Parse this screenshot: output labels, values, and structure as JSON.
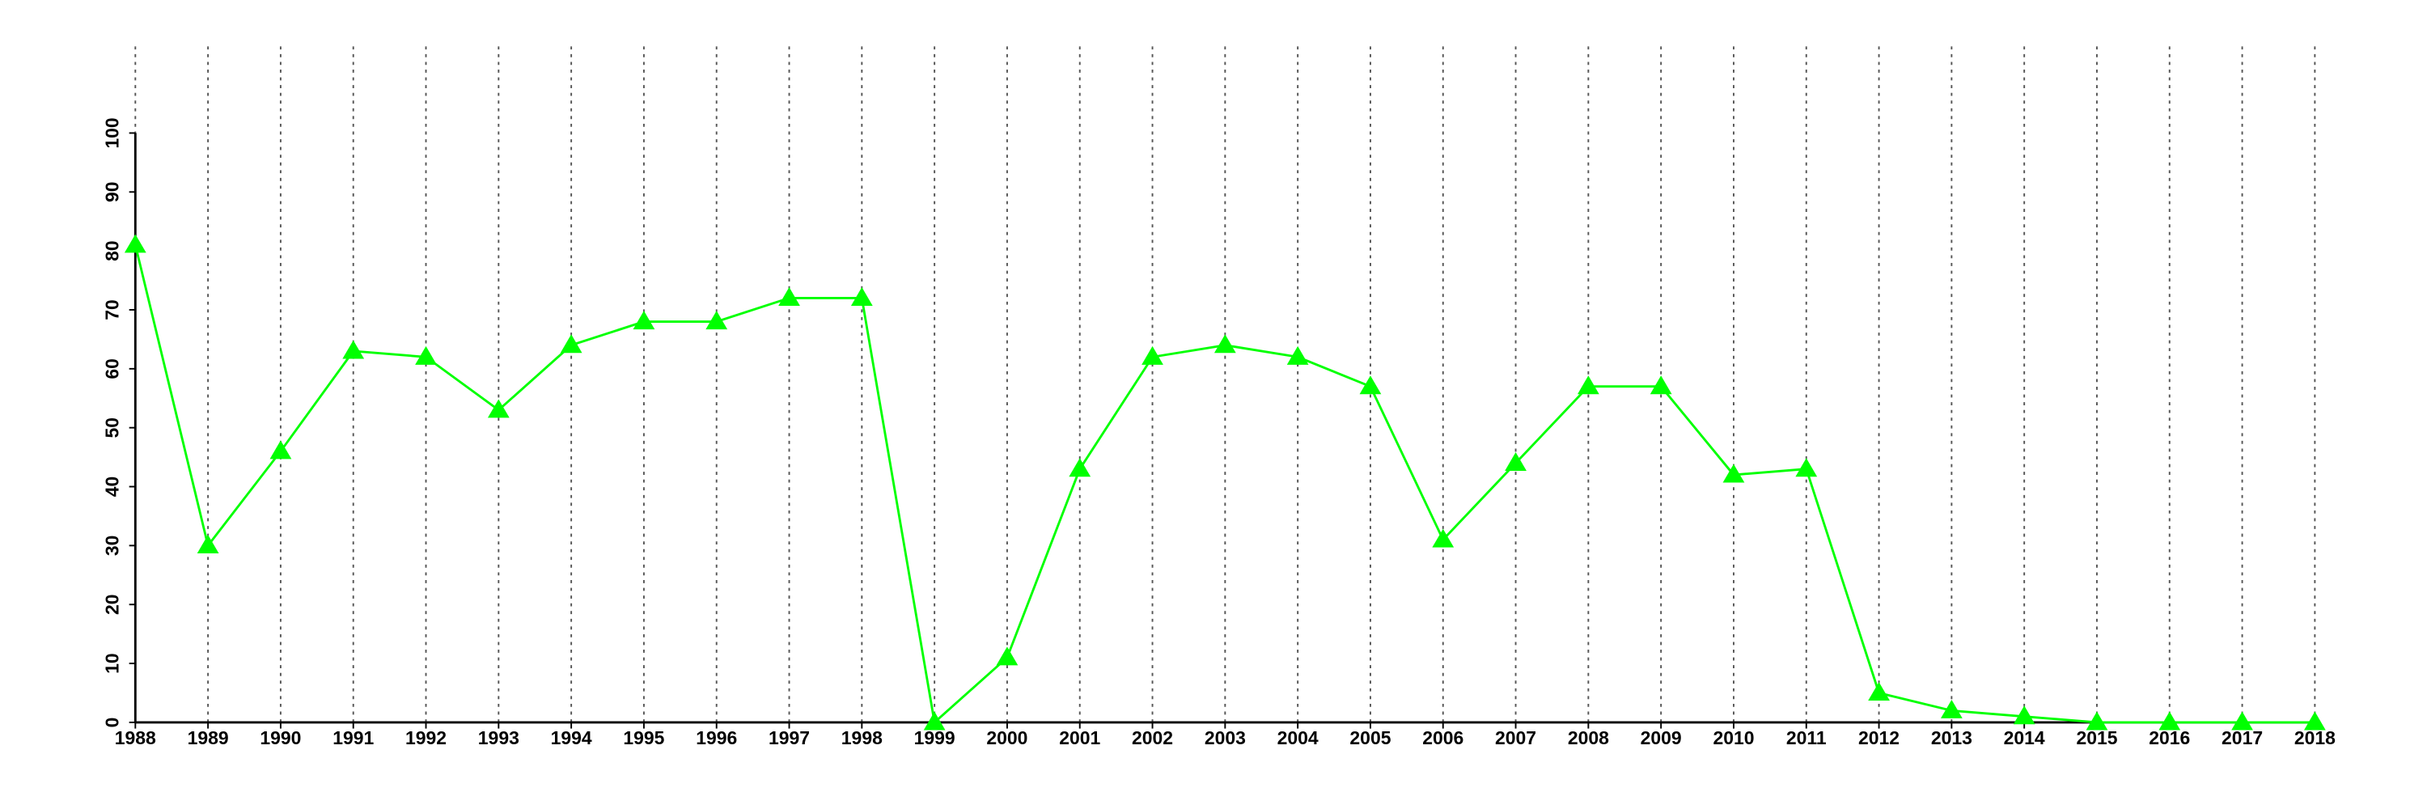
{
  "chart_data": {
    "type": "line",
    "x": [
      1988,
      1989,
      1990,
      1991,
      1992,
      1993,
      1994,
      1995,
      1996,
      1997,
      1998,
      1999,
      2000,
      2001,
      2002,
      2003,
      2004,
      2005,
      2006,
      2007,
      2008,
      2009,
      2010,
      2011,
      2012,
      2013,
      2014,
      2015,
      2016,
      2017,
      2018
    ],
    "series": [
      {
        "color": "#00ff00",
        "marker": "triangle",
        "values": [
          81,
          30,
          46,
          63,
          62,
          53,
          64,
          68,
          68,
          72,
          72,
          0,
          11,
          43,
          62,
          64,
          62,
          57,
          31,
          44,
          57,
          57,
          42,
          43,
          5,
          2,
          1,
          0,
          0,
          0,
          0
        ]
      }
    ],
    "xlim": [
      1988,
      2018
    ],
    "xticks": [
      1988,
      1989,
      1990,
      1991,
      1992,
      1993,
      1994,
      1995,
      1996,
      1997,
      1998,
      1999,
      2000,
      2001,
      2002,
      2003,
      2004,
      2005,
      2006,
      2007,
      2008,
      2009,
      2010,
      2011,
      2012,
      2013,
      2014,
      2015,
      2016,
      2017,
      2018
    ],
    "ylim": [
      0,
      100
    ],
    "yticks": [
      0,
      10,
      20,
      30,
      40,
      50,
      60,
      70,
      80,
      90,
      100
    ],
    "grid": true
  }
}
